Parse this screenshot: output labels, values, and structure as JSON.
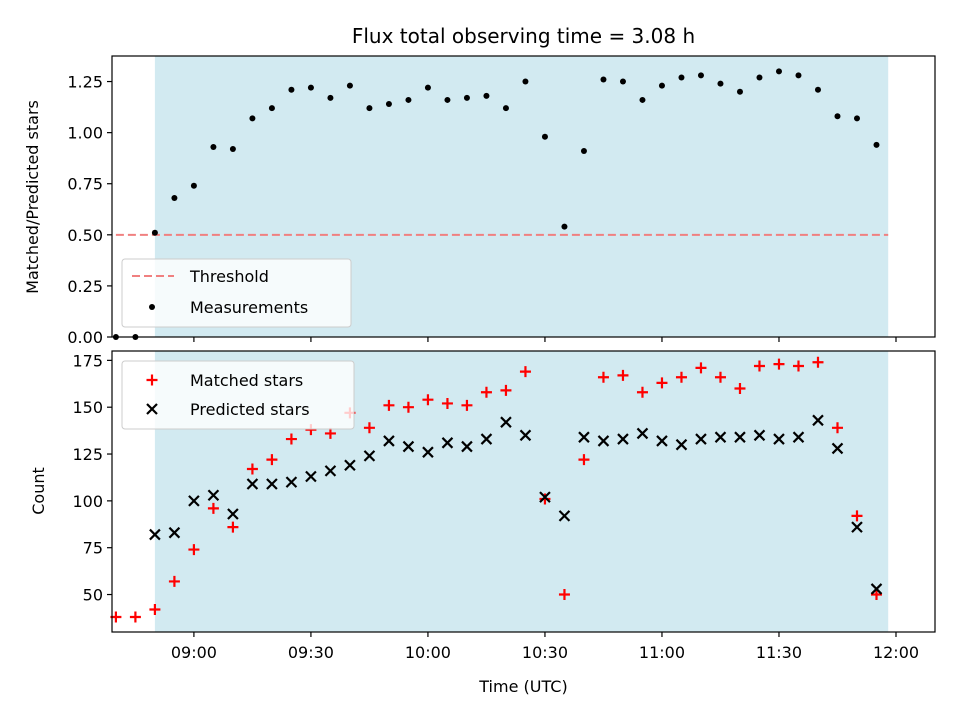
{
  "chart_data": [
    {
      "type": "scatter",
      "title": "Flux total observing time = 3.08 h",
      "xlabel": "",
      "ylabel": "Matched/Predicted stars",
      "ylim": [
        0,
        1.375
      ],
      "yticks": [
        "0.00",
        "0.25",
        "0.50",
        "0.75",
        "1.00",
        "1.25"
      ],
      "ytick_values": [
        0,
        0.25,
        0.5,
        0.75,
        1.0,
        1.25
      ],
      "xlim": [
        "08:39",
        "12:10"
      ],
      "xticks": [
        "09:00",
        "09:30",
        "10:00",
        "10:30",
        "11:00",
        "11:30",
        "12:00"
      ],
      "shaded_interval": [
        "08:50",
        "11:58"
      ],
      "threshold": {
        "name": "Threshold",
        "value": 0.5,
        "x_range": [
          "08:40",
          "11:58"
        ],
        "color": "#f08080"
      },
      "legend": {
        "placement": "lower-left",
        "entries": [
          "Threshold",
          "Measurements"
        ]
      },
      "series": [
        {
          "name": "Measurements",
          "color": "#000000",
          "points": [
            [
              "08:40",
              0.0
            ],
            [
              "08:45",
              0.0
            ],
            [
              "08:50",
              0.51
            ],
            [
              "08:55",
              0.68
            ],
            [
              "09:00",
              0.74
            ],
            [
              "09:05",
              0.93
            ],
            [
              "09:10",
              0.92
            ],
            [
              "09:15",
              1.07
            ],
            [
              "09:20",
              1.12
            ],
            [
              "09:25",
              1.21
            ],
            [
              "09:30",
              1.22
            ],
            [
              "09:35",
              1.17
            ],
            [
              "09:40",
              1.23
            ],
            [
              "09:45",
              1.12
            ],
            [
              "09:50",
              1.14
            ],
            [
              "09:55",
              1.16
            ],
            [
              "10:00",
              1.22
            ],
            [
              "10:05",
              1.16
            ],
            [
              "10:10",
              1.17
            ],
            [
              "10:15",
              1.18
            ],
            [
              "10:20",
              1.12
            ],
            [
              "10:25",
              1.25
            ],
            [
              "10:30",
              0.98
            ],
            [
              "10:35",
              0.54
            ],
            [
              "10:40",
              0.91
            ],
            [
              "10:45",
              1.26
            ],
            [
              "10:50",
              1.25
            ],
            [
              "10:55",
              1.16
            ],
            [
              "11:00",
              1.23
            ],
            [
              "11:05",
              1.27
            ],
            [
              "11:10",
              1.28
            ],
            [
              "11:15",
              1.24
            ],
            [
              "11:20",
              1.2
            ],
            [
              "11:25",
              1.27
            ],
            [
              "11:30",
              1.3
            ],
            [
              "11:35",
              1.28
            ],
            [
              "11:40",
              1.21
            ],
            [
              "11:45",
              1.08
            ],
            [
              "11:50",
              1.07
            ],
            [
              "11:55",
              0.94
            ]
          ]
        }
      ]
    },
    {
      "type": "scatter",
      "title": "",
      "xlabel": "Time (UTC)",
      "ylabel": "Count",
      "ylim": [
        30,
        180
      ],
      "yticks": [
        "50",
        "75",
        "100",
        "125",
        "150",
        "175"
      ],
      "ytick_values": [
        50,
        75,
        100,
        125,
        150,
        175
      ],
      "xlim": [
        "08:39",
        "12:10"
      ],
      "xticks": [
        "09:00",
        "09:30",
        "10:00",
        "10:30",
        "11:00",
        "11:30",
        "12:00"
      ],
      "shaded_interval": [
        "08:50",
        "11:58"
      ],
      "legend": {
        "placement": "top-left",
        "entries": [
          "Matched stars",
          "Predicted stars"
        ]
      },
      "series": [
        {
          "name": "Matched stars",
          "marker": "plus",
          "color": "#ff0000",
          "points": [
            [
              "08:40",
              38
            ],
            [
              "08:45",
              38
            ],
            [
              "08:50",
              42
            ],
            [
              "08:55",
              57
            ],
            [
              "09:00",
              74
            ],
            [
              "09:05",
              96
            ],
            [
              "09:10",
              86
            ],
            [
              "09:15",
              117
            ],
            [
              "09:20",
              122
            ],
            [
              "09:25",
              133
            ],
            [
              "09:30",
              138
            ],
            [
              "09:35",
              136
            ],
            [
              "09:40",
              147
            ],
            [
              "09:45",
              139
            ],
            [
              "09:50",
              151
            ],
            [
              "09:55",
              150
            ],
            [
              "10:00",
              154
            ],
            [
              "10:05",
              152
            ],
            [
              "10:10",
              151
            ],
            [
              "10:15",
              158
            ],
            [
              "10:20",
              159
            ],
            [
              "10:25",
              169
            ],
            [
              "10:30",
              101
            ],
            [
              "10:35",
              50
            ],
            [
              "10:40",
              122
            ],
            [
              "10:45",
              166
            ],
            [
              "10:50",
              167
            ],
            [
              "10:55",
              158
            ],
            [
              "11:00",
              163
            ],
            [
              "11:05",
              166
            ],
            [
              "11:10",
              171
            ],
            [
              "11:15",
              166
            ],
            [
              "11:20",
              160
            ],
            [
              "11:25",
              172
            ],
            [
              "11:30",
              173
            ],
            [
              "11:35",
              172
            ],
            [
              "11:40",
              174
            ],
            [
              "11:45",
              139
            ],
            [
              "11:50",
              92
            ],
            [
              "11:55",
              50
            ]
          ]
        },
        {
          "name": "Predicted stars",
          "marker": "x",
          "color": "#000000",
          "points": [
            [
              "08:50",
              82
            ],
            [
              "08:55",
              83
            ],
            [
              "09:00",
              100
            ],
            [
              "09:05",
              103
            ],
            [
              "09:10",
              93
            ],
            [
              "09:15",
              109
            ],
            [
              "09:20",
              109
            ],
            [
              "09:25",
              110
            ],
            [
              "09:30",
              113
            ],
            [
              "09:35",
              116
            ],
            [
              "09:40",
              119
            ],
            [
              "09:45",
              124
            ],
            [
              "09:50",
              132
            ],
            [
              "09:55",
              129
            ],
            [
              "10:00",
              126
            ],
            [
              "10:05",
              131
            ],
            [
              "10:10",
              129
            ],
            [
              "10:15",
              133
            ],
            [
              "10:20",
              142
            ],
            [
              "10:25",
              135
            ],
            [
              "10:30",
              102
            ],
            [
              "10:35",
              92
            ],
            [
              "10:40",
              134
            ],
            [
              "10:45",
              132
            ],
            [
              "10:50",
              133
            ],
            [
              "10:55",
              136
            ],
            [
              "11:00",
              132
            ],
            [
              "11:05",
              130
            ],
            [
              "11:10",
              133
            ],
            [
              "11:15",
              134
            ],
            [
              "11:20",
              134
            ],
            [
              "11:25",
              135
            ],
            [
              "11:30",
              133
            ],
            [
              "11:35",
              134
            ],
            [
              "11:40",
              143
            ],
            [
              "11:45",
              128
            ],
            [
              "11:50",
              86
            ],
            [
              "11:55",
              53
            ]
          ]
        }
      ]
    }
  ],
  "colors": {
    "shade": "#add8e6",
    "axes": "#000000",
    "background": "#ffffff"
  }
}
